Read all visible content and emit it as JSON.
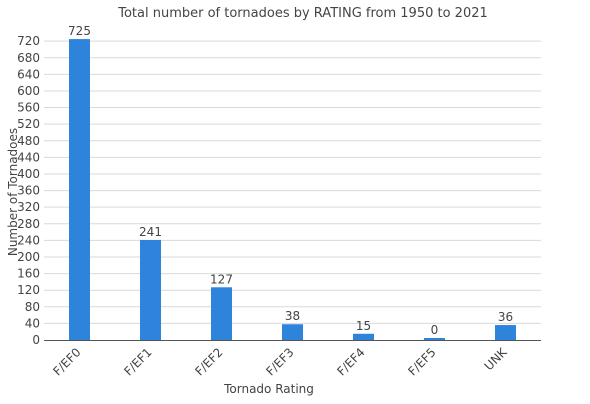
{
  "chart_data": {
    "type": "bar",
    "title": "Total number of tornadoes by RATING from 1950 to 2021",
    "xlabel": "Tornado Rating",
    "ylabel": "Number of Tornadoes",
    "categories": [
      "F/EF0",
      "F/EF1",
      "F/EF2",
      "F/EF3",
      "F/EF4",
      "F/EF5",
      "UNK"
    ],
    "values": [
      725,
      241,
      127,
      38,
      15,
      0,
      36
    ],
    "ylim": [
      0,
      730
    ],
    "yticks": [
      0,
      40,
      80,
      120,
      160,
      200,
      240,
      280,
      320,
      360,
      400,
      440,
      480,
      520,
      560,
      600,
      640,
      680,
      720
    ],
    "grid": true,
    "legend": "none",
    "bar_color": "#2e84db"
  }
}
